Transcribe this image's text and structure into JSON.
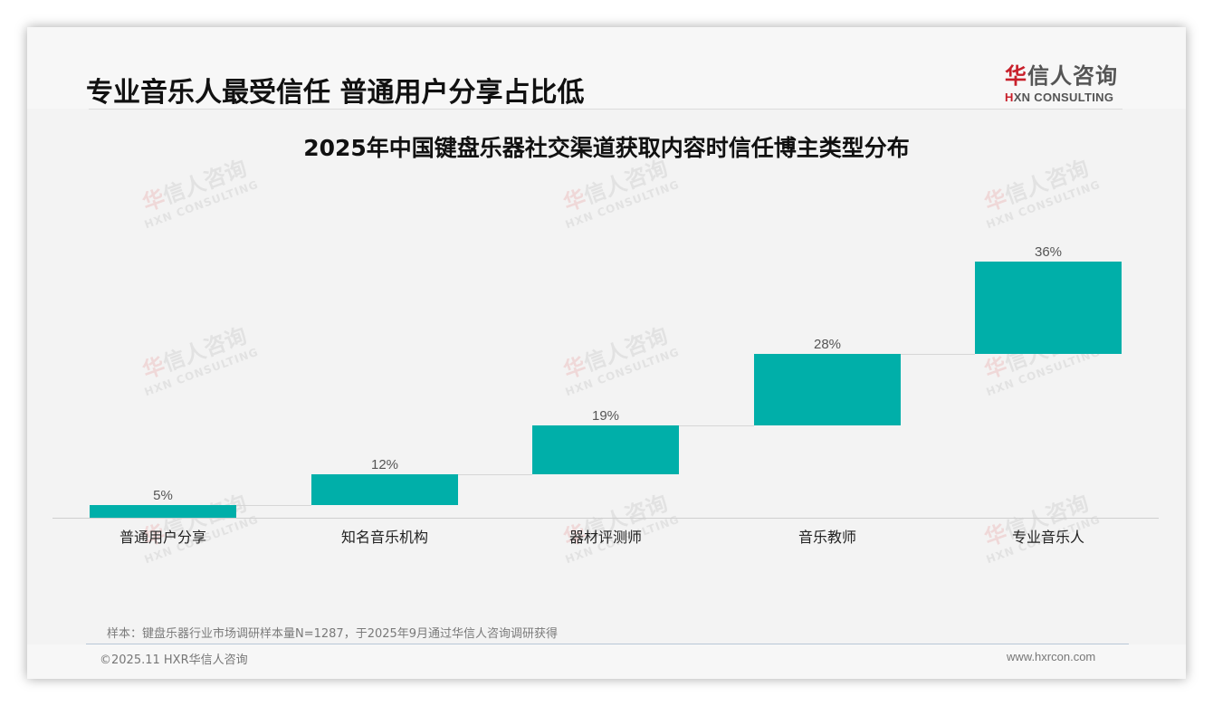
{
  "header": {
    "title": "专业音乐人最受信任 普通用户分享占比低",
    "logo": {
      "cn_red": "华",
      "cn_rest": "信人咨询",
      "en_red": "H",
      "en_rest": "XN CONSULTING"
    }
  },
  "watermark": {
    "cn_red": "华",
    "cn_rest": "信人咨询",
    "en": "HXN CONSULTING"
  },
  "chart_data": {
    "type": "bar",
    "subtype": "waterfall",
    "title": "2025年中国键盘乐器社交渠道获取内容时信任博主类型分布",
    "categories": [
      "普通用户分享",
      "知名音乐机构",
      "器材评测师",
      "音乐教师",
      "专业音乐人"
    ],
    "values": [
      5,
      12,
      19,
      28,
      36
    ],
    "value_labels": [
      "5%",
      "12%",
      "19%",
      "28%",
      "36%"
    ],
    "cumulative_end": [
      5,
      17,
      36,
      64,
      100
    ],
    "unit": "%",
    "xlabel": "",
    "ylabel": "",
    "ylim": [
      0,
      100
    ],
    "grid": false,
    "legend": "none",
    "bar_color": "#00afa9"
  },
  "footer": {
    "note": "样本：键盘乐器行业市场调研样本量N=1287，于2025年9月通过华信人咨询调研获得",
    "copyright": "©2025.11 HXR华信人咨询",
    "website": "www.hxrcon.com"
  }
}
